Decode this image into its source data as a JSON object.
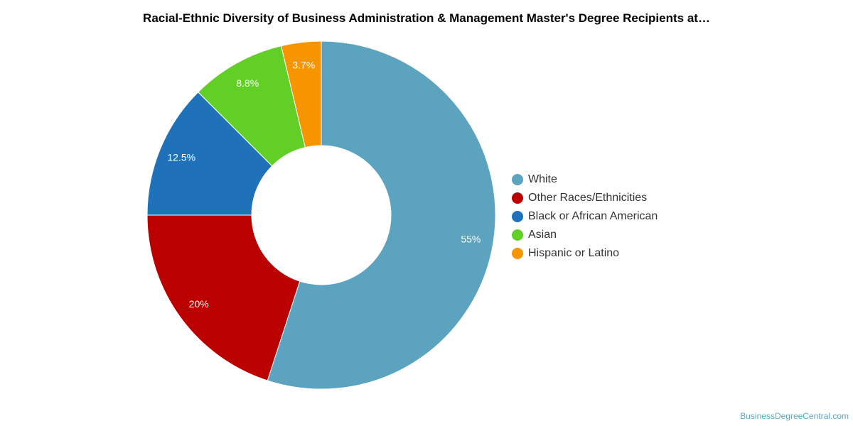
{
  "chart_data": {
    "type": "pie",
    "variant": "donut",
    "title": "Racial-Ethnic Diversity of Business Administration & Management Master's Degree Recipients at…",
    "categories": [
      "White",
      "Other Races/Ethnicities",
      "Black or African American",
      "Asian",
      "Hispanic or Latino"
    ],
    "values": [
      55,
      20,
      12.5,
      8.8,
      3.7
    ],
    "value_labels": [
      "55%",
      "20%",
      "12.5%",
      "8.8%",
      "3.7%"
    ],
    "colors": [
      "#5ca3c0",
      "#bb0000",
      "#1f72ba",
      "#62cf26",
      "#f79500"
    ],
    "legend_placement": "right",
    "grid": false
  },
  "credit": "BusinessDegreeCentral.com"
}
